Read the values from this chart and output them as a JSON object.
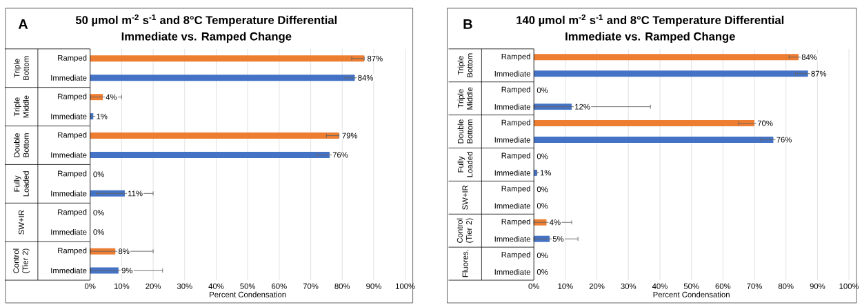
{
  "chart_data": [
    {
      "type": "bar",
      "orientation": "horizontal",
      "title": "50 µmol m$^{-2}$ s$^{-1}$ and 8°C Temperature Differential",
      "subtitle": "Immediate vs. Ramped Change",
      "xlabel": "Percent Condensation",
      "annotations": [
        "A",
        "Triple Bottom",
        "Triple Middle",
        "Double Bottom",
        "Fully Loaded",
        "SW+IR",
        "Control (Tier 2)"
      ],
      "categories": [
        "Ramped",
        "Immediate",
        "Ramped",
        "Immediate",
        "Ramped",
        "Immediate",
        "Ramped",
        "Immediate",
        "Ramped",
        "Immediate",
        "Ramped",
        "Immediate"
      ],
      "values": [
        87,
        84,
        4,
        1,
        79,
        76,
        0,
        11,
        0,
        0,
        8,
        9
      ],
      "colors": [
        "#ed7d31",
        "#4472c4",
        "#ed7d31",
        "#4472c4",
        "#ed7d31",
        "#4472c4",
        "#ed7d31",
        "#4472c4",
        "#ed7d31",
        "#4472c4",
        "#ed7d31",
        "#4472c4"
      ],
      "errors": [
        [
          83,
          87
        ],
        [
          81,
          87
        ],
        [
          0,
          10
        ],
        [
          0,
          4
        ],
        [
          75,
          79
        ],
        [
          72,
          80
        ],
        null,
        [
          2,
          20
        ],
        null,
        null,
        [
          0,
          20
        ],
        [
          0,
          23
        ]
      ],
      "value_labels": [
        "87%",
        "84%",
        "4%",
        "1%",
        "79%",
        "76%",
        "0%",
        "11%",
        "0%",
        "0%",
        "8%",
        "9%"
      ],
      "xlim": [
        0,
        100
      ],
      "xticks": [
        {
          "value": 0,
          "label": "0%"
        },
        {
          "value": 10,
          "label": "10%"
        },
        {
          "value": 20,
          "label": "20%"
        },
        {
          "value": 30,
          "label": "30%"
        },
        {
          "value": 40,
          "label": "40%"
        },
        {
          "value": 50,
          "label": "50%"
        },
        {
          "value": 60,
          "label": "60%"
        },
        {
          "value": 70,
          "label": "70%"
        },
        {
          "value": 80,
          "label": "80%"
        },
        {
          "value": 90,
          "label": "90%"
        },
        {
          "value": 100,
          "label": "100%"
        }
      ],
      "grid": "x"
    },
    {
      "type": "bar",
      "orientation": "horizontal",
      "title": "140 µmol m$^{-2}$ s$^{-1}$ and 8°C Temperature Differential",
      "subtitle": "Immediate vs. Ramped Change",
      "xlabel": "Percent Condensation",
      "annotations": [
        "B",
        "Triple Bottom",
        "Triple Middle",
        "Double Bottom",
        "Fully Loaded",
        "SW+IR",
        "Control (Tier 2)",
        "Fluores."
      ],
      "categories": [
        "Ramped",
        "Immediate",
        "Ramped",
        "Immediate",
        "Ramped",
        "Immediate",
        "Ramped",
        "Immediate",
        "Ramped",
        "Immediate",
        "Ramped",
        "Immediate",
        "Ramped",
        "Immediate"
      ],
      "values": [
        84,
        87,
        0,
        12,
        70,
        76,
        0,
        1,
        0,
        0,
        4,
        5,
        0,
        0
      ],
      "colors": [
        "#ed7d31",
        "#4472c4",
        "#ed7d31",
        "#4472c4",
        "#ed7d31",
        "#4472c4",
        "#ed7d31",
        "#4472c4",
        "#ed7d31",
        "#4472c4",
        "#ed7d31",
        "#4472c4",
        "#ed7d31",
        "#4472c4"
      ],
      "errors": [
        [
          81,
          87
        ],
        [
          83,
          91
        ],
        null,
        [
          0,
          37
        ],
        [
          65,
          75
        ],
        [
          72,
          80
        ],
        null,
        [
          1,
          2
        ],
        null,
        null,
        [
          0,
          12
        ],
        [
          0,
          14
        ],
        null,
        null
      ],
      "value_labels": [
        "84%",
        "87%",
        "0%",
        "12%",
        "70%",
        "76%",
        "0%",
        "1%",
        "0%",
        "0%",
        "4%",
        "5%",
        "0%",
        "0%"
      ],
      "xlim": [
        0,
        100
      ],
      "xticks": [
        {
          "value": 0,
          "label": "0%"
        },
        {
          "value": 10,
          "label": "10%"
        },
        {
          "value": 20,
          "label": "20%"
        },
        {
          "value": 30,
          "label": "30%"
        },
        {
          "value": 40,
          "label": "40%"
        },
        {
          "value": 50,
          "label": "50%"
        },
        {
          "value": 60,
          "label": "60%"
        },
        {
          "value": 70,
          "label": "70%"
        },
        {
          "value": 80,
          "label": "80%"
        },
        {
          "value": 90,
          "label": "90%"
        },
        {
          "value": 100,
          "label": "100%"
        }
      ],
      "grid": "x"
    }
  ]
}
